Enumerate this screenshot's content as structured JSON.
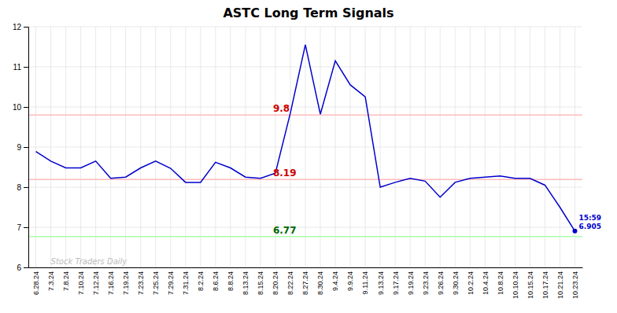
{
  "chart_data": {
    "type": "line",
    "title": "ASTC Long Term Signals",
    "categories": [
      "6.28.24",
      "7.3.24",
      "7.8.24",
      "7.10.24",
      "7.12.24",
      "7.16.24",
      "7.19.24",
      "7.23.24",
      "7.25.24",
      "7.29.24",
      "7.31.24",
      "8.2.24",
      "8.6.24",
      "8.8.24",
      "8.13.24",
      "8.15.24",
      "8.20.24",
      "8.22.24",
      "8.27.24",
      "8.30.24",
      "9.4.24",
      "9.9.24",
      "9.11.24",
      "9.13.24",
      "9.17.24",
      "9.19.24",
      "9.23.24",
      "9.26.24",
      "9.30.24",
      "10.2.24",
      "10.4.24",
      "10.8.24",
      "10.10.24",
      "10.15.24",
      "10.17.24",
      "10.21.24",
      "10.23.24"
    ],
    "values": [
      8.89,
      8.65,
      8.48,
      8.48,
      8.65,
      8.22,
      8.25,
      8.48,
      8.65,
      8.47,
      8.12,
      8.12,
      8.62,
      8.48,
      8.25,
      8.22,
      8.35,
      9.85,
      11.55,
      9.82,
      11.15,
      10.55,
      10.25,
      8.0,
      8.12,
      8.22,
      8.15,
      7.75,
      8.12,
      8.22,
      8.25,
      8.28,
      8.22,
      8.22,
      8.05,
      7.5,
      6.905
    ],
    "color": "#0000cc",
    "ylim": [
      6,
      12
    ],
    "yticks": [
      6,
      7,
      8,
      9,
      10,
      11,
      12
    ],
    "grid": true,
    "reference_lines": [
      {
        "value": 9.8,
        "label": "9.8",
        "color": "#ffbbbb",
        "label_color": "#cc0000"
      },
      {
        "value": 8.19,
        "label": "8.19",
        "color": "#ffbbbb",
        "label_color": "#cc0000"
      },
      {
        "value": 6.77,
        "label": "6.77",
        "color": "#aaffaa",
        "label_color": "#006600"
      }
    ],
    "annotations": [
      {
        "text": "15:59",
        "color": "#0000cc"
      },
      {
        "text": "6.905",
        "color": "#0000cc"
      }
    ],
    "watermark": {
      "text": "Stock Traders Daily",
      "color": "#bbbbbb"
    }
  }
}
